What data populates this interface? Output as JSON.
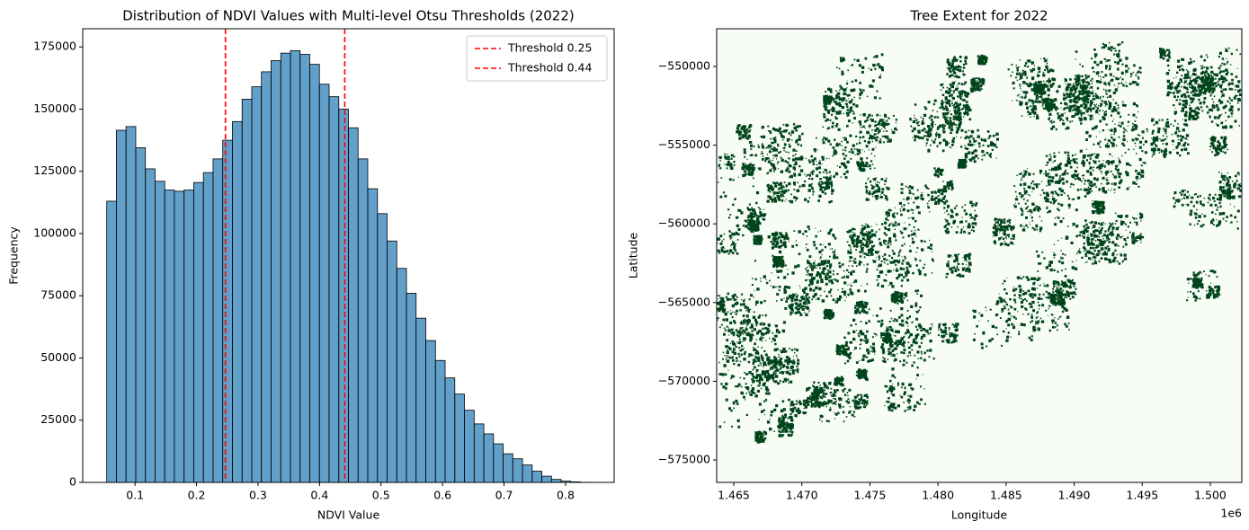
{
  "chart_data": [
    {
      "type": "histogram",
      "title": "Distribution of NDVI Values with Multi-level Otsu Thresholds (2022)",
      "xlabel": "NDVI Value",
      "ylabel": "Frequency",
      "bins": [
        0.054,
        0.0697,
        0.0854,
        0.1012,
        0.1169,
        0.1326,
        0.1483,
        0.164,
        0.1798,
        0.1955,
        0.2112,
        0.2269,
        0.2426,
        0.2584,
        0.2741,
        0.2898,
        0.3055,
        0.3212,
        0.337,
        0.3527,
        0.3684,
        0.3841,
        0.3998,
        0.4156,
        0.4313,
        0.447,
        0.4627,
        0.4784,
        0.4942,
        0.5099,
        0.5256,
        0.5413,
        0.557,
        0.5728,
        0.5885,
        0.6042,
        0.6199,
        0.6356,
        0.6514,
        0.6671,
        0.6828,
        0.6985,
        0.7142,
        0.73,
        0.7457,
        0.7614,
        0.7771,
        0.7928,
        0.8086,
        0.8243,
        0.84
      ],
      "values": [
        113000,
        141500,
        143000,
        134500,
        126000,
        121000,
        117500,
        117000,
        117500,
        120500,
        124500,
        130000,
        137500,
        145000,
        154000,
        159000,
        165000,
        169500,
        172500,
        173500,
        172000,
        168000,
        160000,
        155000,
        150000,
        142500,
        130000,
        118000,
        108000,
        97000,
        86000,
        76000,
        66000,
        57000,
        49000,
        42000,
        35500,
        29000,
        23500,
        19500,
        15500,
        11500,
        9500,
        7000,
        4500,
        2500,
        1200,
        500,
        200,
        50
      ],
      "color": "#1f77b4",
      "edgecolor": "#000000",
      "xlim": [
        0.015,
        0.879
      ],
      "xticks": [
        0.1,
        0.2,
        0.3,
        0.4,
        0.5,
        0.6,
        0.7,
        0.8
      ],
      "ylim": [
        0,
        182300
      ],
      "yticks": [
        0,
        25000,
        50000,
        75000,
        100000,
        125000,
        150000,
        175000
      ],
      "thresholds": [
        {
          "name": "Threshold 0.25",
          "value": 0.247,
          "color": "#ff0000"
        },
        {
          "name": "Threshold 0.44",
          "value": 0.441,
          "color": "#ff0000"
        }
      ],
      "legend": "upper right"
    },
    {
      "type": "raster",
      "title": "Tree Extent for 2022",
      "xlabel": "Longitude",
      "ylabel": "Latitude",
      "x_offset": "1e6",
      "colors": [
        "#f7fcf5",
        "#00441b"
      ],
      "xlim": [
        1463745,
        1502312
      ],
      "xticks": [
        {
          "value": 1465000,
          "label": "1.465"
        },
        {
          "value": 1470000,
          "label": "1.470"
        },
        {
          "value": 1475000,
          "label": "1.475"
        },
        {
          "value": 1480000,
          "label": "1.480"
        },
        {
          "value": 1485000,
          "label": "1.485"
        },
        {
          "value": 1490000,
          "label": "1.490"
        },
        {
          "value": 1495000,
          "label": "1.495"
        },
        {
          "value": 1500000,
          "label": "1.500"
        }
      ],
      "ylim": [
        -576427,
        -547603
      ],
      "yticks": [
        {
          "value": -550000,
          "label": "−550000"
        },
        {
          "value": -555000,
          "label": "−555000"
        },
        {
          "value": -560000,
          "label": "−560000"
        },
        {
          "value": -565000,
          "label": "−565000"
        },
        {
          "value": -570000,
          "label": "−570000"
        },
        {
          "value": -575000,
          "label": "−575000"
        }
      ]
    }
  ]
}
